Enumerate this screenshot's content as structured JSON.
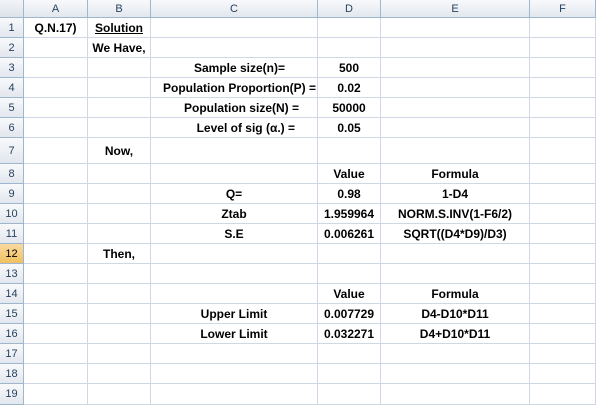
{
  "columns": [
    "A",
    "B",
    "C",
    "D",
    "E",
    "F"
  ],
  "rows": [
    "1",
    "2",
    "3",
    "4",
    "5",
    "6",
    "7",
    "8",
    "9",
    "10",
    "11",
    "12",
    "13",
    "14",
    "15",
    "16",
    "17",
    "18",
    "19"
  ],
  "active_row": "12",
  "cells": {
    "A1": "Q.N.17)",
    "B1": "Solution",
    "B2": "We Have,",
    "C3": "Sample size(n)=",
    "D3": "500",
    "C4": "Population Proportion(P) =",
    "D4": "0.02",
    "C5": "Population size(N) =",
    "D5": "50000",
    "C6": "Level of sig (α.) =",
    "D6": "0.05",
    "B7": "Now,",
    "D8": "Value",
    "E8": "Formula",
    "C9": "Q=",
    "D9": "0.98",
    "E9": "1-D4",
    "C10": "Ztab",
    "D10": "1.959964",
    "E10": "NORM.S.INV(1-F6/2)",
    "C11": "S.E",
    "D11": "0.006261",
    "E11": "SQRT((D4*D9)/D3)",
    "B12": "Then,",
    "D14": "Value",
    "E14": "Formula",
    "C15": "Upper Limit",
    "D15": "0.007729",
    "E15": "D4-D10*D11",
    "C16": "Lower Limit",
    "D16": "0.032271",
    "E16": "D4+D10*D11"
  },
  "colors": {
    "grid_line": "#d0d7e5",
    "header_border": "#9eb6ce",
    "active_header": "#f1c15f"
  }
}
